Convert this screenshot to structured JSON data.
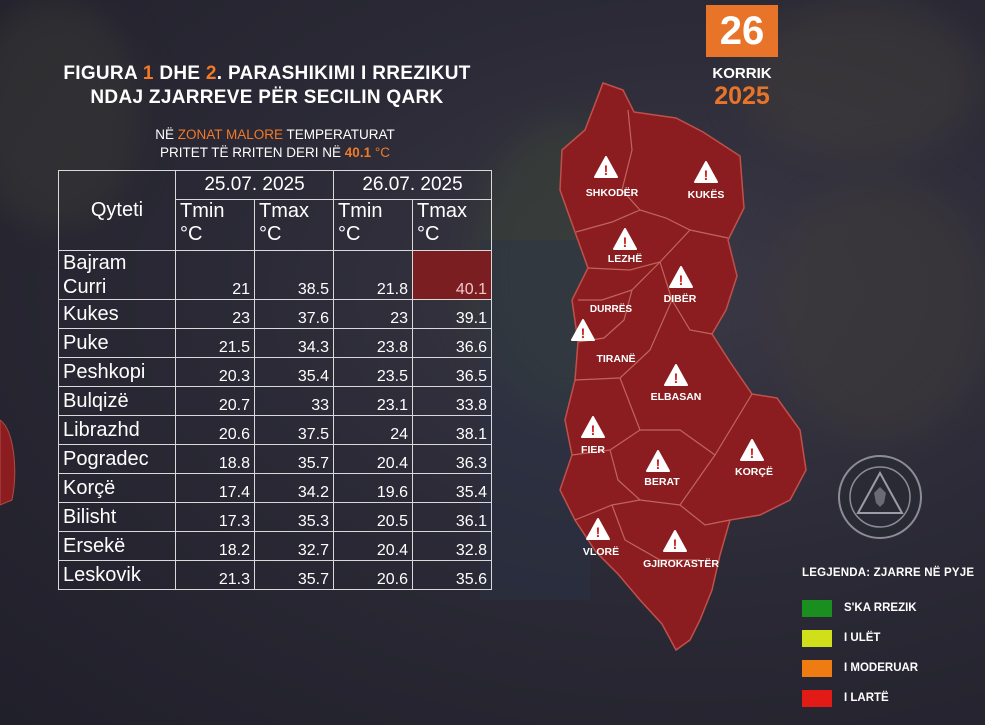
{
  "title": {
    "line1_a": "FIGURA ",
    "line1_n1": "1",
    "line1_b": " DHE ",
    "line1_n2": "2",
    "line1_c": ". PARASHIKIMI I RREZIKUT",
    "line2": "NDAJ ZJARREVE PËR SECILIN QARK"
  },
  "subtitle": {
    "a": "NË ",
    "zone": "ZONAT MALORE",
    "b": " TEMPERATURAT",
    "c": "PRITET TË RRITEN DERI NË ",
    "value": "40.1",
    "unit": " °C"
  },
  "date": {
    "day": "26",
    "month": "KORRIK",
    "year": "2025"
  },
  "table": {
    "city_header": "Qyteti",
    "date1": "25.07. 2025",
    "date2": "26.07. 2025",
    "tmin": "Tmin",
    "tmax": "Tmax",
    "unit": "°C",
    "rows": [
      {
        "city_l1": "Bajram",
        "city_l2": "Curri",
        "d1_min": "21",
        "d1_max": "38.5",
        "d2_min": "21.8",
        "d2_max": "40.1"
      },
      {
        "city": "Kukes",
        "d1_min": "23",
        "d1_max": "37.6",
        "d2_min": "23",
        "d2_max": "39.1"
      },
      {
        "city": "Puke",
        "d1_min": "21.5",
        "d1_max": "34.3",
        "d2_min": "23.8",
        "d2_max": "36.6"
      },
      {
        "city": "Peshkopi",
        "d1_min": "20.3",
        "d1_max": "35.4",
        "d2_min": "23.5",
        "d2_max": "36.5"
      },
      {
        "city": "Bulqizë",
        "d1_min": "20.7",
        "d1_max": "33",
        "d2_min": "23.1",
        "d2_max": "33.8"
      },
      {
        "city": "Librazhd",
        "d1_min": "20.6",
        "d1_max": "37.5",
        "d2_min": "24",
        "d2_max": "38.1"
      },
      {
        "city": "Pogradec",
        "d1_min": "18.8",
        "d1_max": "35.7",
        "d2_min": "20.4",
        "d2_max": "36.3"
      },
      {
        "city": "Korçë",
        "d1_min": "17.4",
        "d1_max": "34.2",
        "d2_min": "19.6",
        "d2_max": "35.4"
      },
      {
        "city": "Bilisht",
        "d1_min": "17.3",
        "d1_max": "35.3",
        "d2_min": "20.5",
        "d2_max": "36.1"
      },
      {
        "city": "Ersekë",
        "d1_min": "18.2",
        "d1_max": "32.7",
        "d2_min": "20.4",
        "d2_max": "32.8"
      },
      {
        "city": "Leskovik",
        "d1_min": "21.3",
        "d1_max": "35.7",
        "d2_min": "20.6",
        "d2_max": "35.6"
      }
    ]
  },
  "map": {
    "fill_color": "#8b1d20",
    "border_color": "#b34a44",
    "regions": [
      {
        "name": "SHKODËR",
        "risk": "I LARTË"
      },
      {
        "name": "KUKËS",
        "risk": "I LARTË"
      },
      {
        "name": "LEZHË",
        "risk": "I LARTË"
      },
      {
        "name": "DIBËR",
        "risk": "I LARTË"
      },
      {
        "name": "DURRËS",
        "risk": "I LARTË"
      },
      {
        "name": "TIRANË",
        "risk": "I LARTË"
      },
      {
        "name": "ELBASAN",
        "risk": "I LARTË"
      },
      {
        "name": "FIER",
        "risk": "I LARTË"
      },
      {
        "name": "BERAT",
        "risk": "I LARTË"
      },
      {
        "name": "KORÇË",
        "risk": "I LARTË"
      },
      {
        "name": "VLORË",
        "risk": "I LARTË"
      },
      {
        "name": "GJIROKASTËR",
        "risk": "I LARTË"
      }
    ],
    "warning_icon": "warning-triangle-icon"
  },
  "legend": {
    "title": "LEGJENDA: ZJARRE NË PYJE",
    "items": [
      {
        "label": "S'KA RREZIK",
        "color": "#1a8f1f"
      },
      {
        "label": "I ULËT",
        "color": "#cfe01a"
      },
      {
        "label": "I MODERUAR",
        "color": "#ef7c12"
      },
      {
        "label": "I LARTË",
        "color": "#e31b17"
      }
    ]
  }
}
